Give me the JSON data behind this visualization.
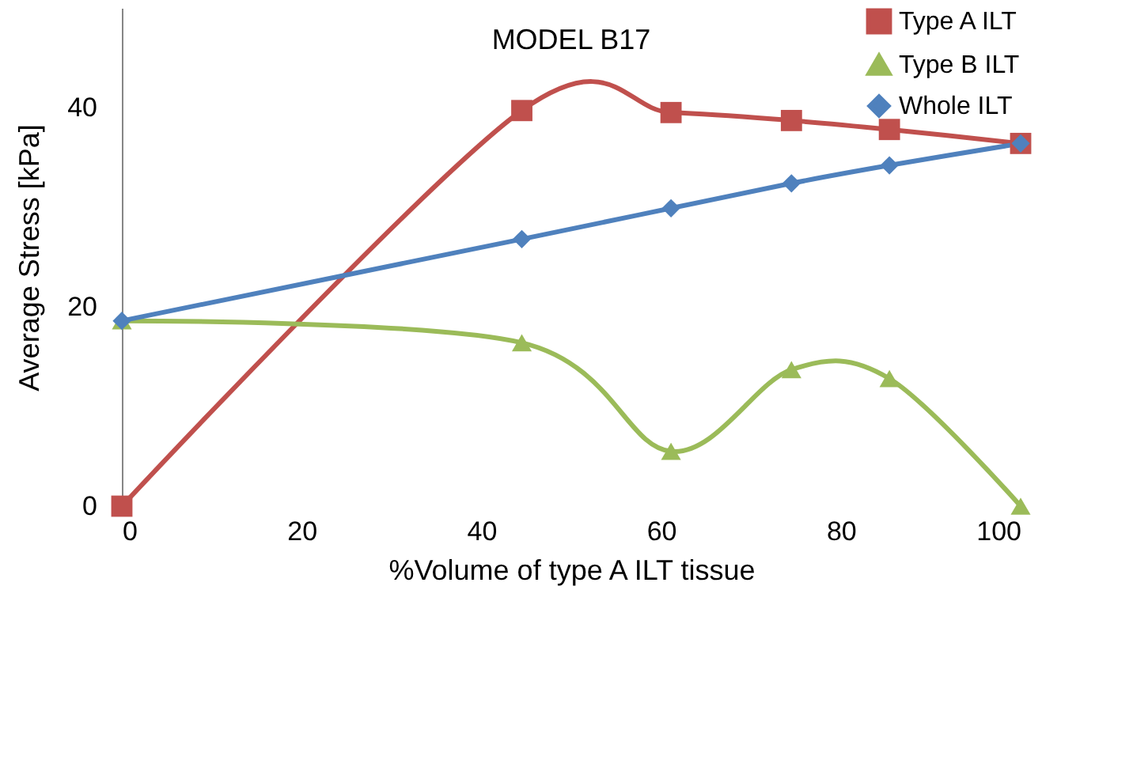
{
  "chart_data": {
    "type": "line",
    "title": "MODEL B17",
    "xlabel": "%Volume of type A ILT tissue",
    "ylabel": "Average  Stress  [kPa]",
    "xlim": [
      0,
      100
    ],
    "xticks": [
      0,
      20,
      40,
      60,
      80,
      100
    ],
    "ylim": [
      0,
      50
    ],
    "yticks": [
      0,
      20,
      40
    ],
    "grid": false,
    "legend": "top right",
    "series": [
      {
        "name": "Type A ILT",
        "color": "#c0504d",
        "marker": "square",
        "x": [
          0,
          44.5,
          61.1,
          74.5,
          85.4,
          100
        ],
        "values": [
          0,
          39.7,
          39.5,
          38.7,
          37.8,
          36.4
        ]
      },
      {
        "name": "Type B ILT",
        "color": "#9bbb59",
        "marker": "triangle",
        "x": [
          0,
          44.5,
          61.1,
          74.5,
          85.4,
          100
        ],
        "values": [
          18.6,
          16.4,
          5.5,
          13.7,
          12.8,
          0
        ]
      },
      {
        "name": "Whole ILT",
        "color": "#4f81bd",
        "marker": "diamond",
        "x": [
          0,
          44.5,
          61.1,
          74.5,
          85.4,
          100
        ],
        "values": [
          18.6,
          26.8,
          29.9,
          32.4,
          34.2,
          36.4
        ]
      }
    ]
  }
}
